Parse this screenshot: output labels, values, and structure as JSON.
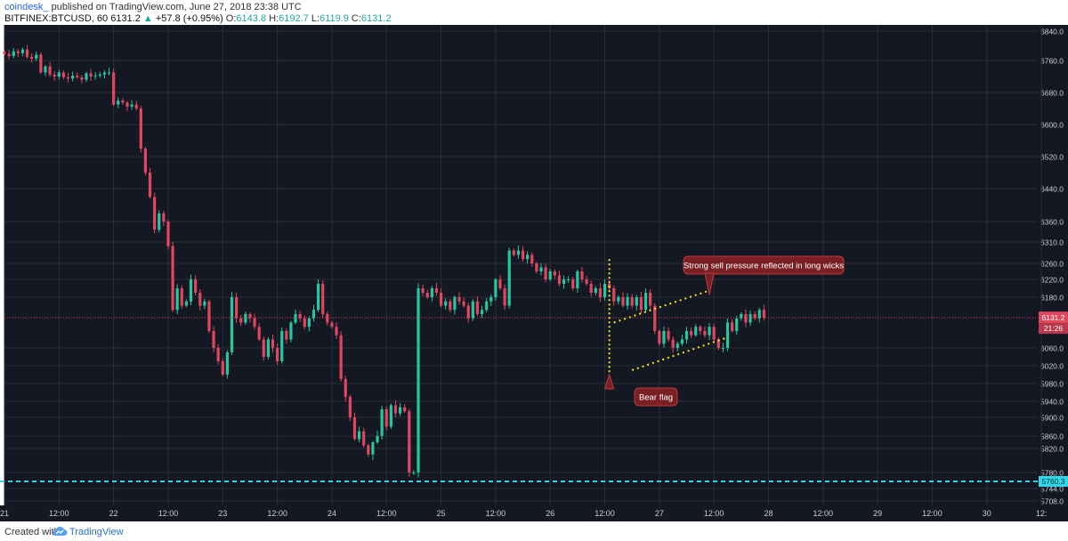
{
  "header": {
    "author": "coindesk_",
    "published_text": "published on TradingView.com, June 27, 2018 23:38 UTC",
    "symbol": "BITFINEX:BTCUSD, 60",
    "last": "6131.2",
    "arrow": "▲",
    "change": "+57.8 (+0.95%)",
    "o_label": "O:",
    "o_val": "6143.8",
    "h_label": "H:",
    "h_val": "6192.7",
    "l_label": "L:",
    "l_val": "6119.9",
    "c_label": "C:",
    "c_val": "6131.2"
  },
  "footer": {
    "created_with": "Created with",
    "brand": "TradingView",
    "logo_icon": "tradingview-cloud-icon"
  },
  "colors": {
    "background": "#141823",
    "grid": "#2a2e39",
    "up": "#26c6a0",
    "down": "#e0475f",
    "annotation_fill": "#7a1f24",
    "annotation_border": "#c0393f",
    "trendline": "#f5e71a",
    "support": "#2ed8e8"
  },
  "chart_data": {
    "type": "candlestick",
    "symbol": "BITFINEX:BTCUSD",
    "interval": "60",
    "y_ticks": [
      6840.0,
      6760.0,
      6680.0,
      6600.0,
      6520.0,
      6440.0,
      6360.0,
      6310.0,
      6260.0,
      6220.0,
      6180.0,
      6060.0,
      6020.0,
      5980.0,
      5940.0,
      5900.0,
      5860.0,
      5820.0,
      5780.0,
      5744.0,
      5708.0
    ],
    "x_ticks": [
      {
        "t": 0,
        "label": "21"
      },
      {
        "t": 12,
        "label": "12:00"
      },
      {
        "t": 24,
        "label": "22"
      },
      {
        "t": 36,
        "label": "12:00"
      },
      {
        "t": 48,
        "label": "23"
      },
      {
        "t": 60,
        "label": "12:00"
      },
      {
        "t": 72,
        "label": "24"
      },
      {
        "t": 84,
        "label": "12:00"
      },
      {
        "t": 96,
        "label": "25"
      },
      {
        "t": 108,
        "label": "12:00"
      },
      {
        "t": 120,
        "label": "26"
      },
      {
        "t": 132,
        "label": "12:00"
      },
      {
        "t": 144,
        "label": "27"
      },
      {
        "t": 156,
        "label": "12:00"
      },
      {
        "t": 168,
        "label": "28"
      },
      {
        "t": 180,
        "label": "12:00"
      },
      {
        "t": 192,
        "label": "29"
      },
      {
        "t": 204,
        "label": "12:00"
      },
      {
        "t": 216,
        "label": "30"
      },
      {
        "t": 228,
        "label": "12:"
      }
    ],
    "closes": [
      6778,
      6772,
      6785,
      6780,
      6790,
      6770,
      6765,
      6776,
      6730,
      6745,
      6725,
      6720,
      6730,
      6718,
      6715,
      6722,
      6718,
      6712,
      6728,
      6720,
      6722,
      6725,
      6730,
      6730,
      6650,
      6660,
      6655,
      6645,
      6650,
      6640,
      6540,
      6480,
      6420,
      6340,
      6380,
      6360,
      6300,
      6150,
      6200,
      6160,
      6170,
      6220,
      6190,
      6160,
      6170,
      6100,
      6060,
      6030,
      6000,
      6050,
      6180,
      6130,
      6120,
      6140,
      6130,
      6110,
      6080,
      6040,
      6080,
      6060,
      6030,
      6100,
      6080,
      6120,
      6140,
      6130,
      6110,
      6130,
      6150,
      6210,
      6140,
      6120,
      6110,
      6090,
      5990,
      5950,
      5900,
      5850,
      5870,
      5830,
      5810,
      5840,
      5860,
      5920,
      5880,
      5930,
      5910,
      5925,
      5915,
      5780,
      5780,
      6200,
      6190,
      6180,
      6200,
      6190,
      6160,
      6170,
      6150,
      6180,
      6170,
      6160,
      6130,
      6170,
      6140,
      6150,
      6170,
      6180,
      6220,
      6200,
      6160,
      6290,
      6280,
      6290,
      6270,
      6280,
      6260,
      6240,
      6250,
      6220,
      6240,
      6230,
      6210,
      6220,
      6220,
      6200,
      6240,
      6220,
      6210,
      6190,
      6200,
      6180,
      6210,
      6200,
      6170,
      6180,
      6160,
      6180,
      6160,
      6180,
      6150,
      6190,
      6160,
      6100,
      6070,
      6100,
      6080,
      6060,
      6070,
      6080,
      6100,
      6090,
      6110,
      6100,
      6090,
      6110,
      6080,
      6060,
      6060,
      6120,
      6100,
      6130,
      6140,
      6120,
      6140,
      6130,
      6150,
      6131.2
    ],
    "current_price": 6131.2,
    "price_label": "6131.2",
    "countdown_label": "21:26",
    "support_level": 5760.3,
    "support_label": "5760.3",
    "annotations": [
      {
        "text": "Strong sell pressure reflected in long wicks",
        "pointer_t": 155,
        "pointer_price": 6185
      },
      {
        "text": "Bear flag",
        "pointer_t": 133,
        "pointer_price": 6000
      }
    ],
    "bear_flag_pole": {
      "t": 133,
      "from": 6270,
      "to": 6000
    },
    "channel_upper": {
      "t1": 134,
      "p1": 6120,
      "t2": 155,
      "p2": 6195
    },
    "channel_lower": {
      "t1": 138,
      "p1": 6010,
      "t2": 159,
      "p2": 6085
    }
  }
}
